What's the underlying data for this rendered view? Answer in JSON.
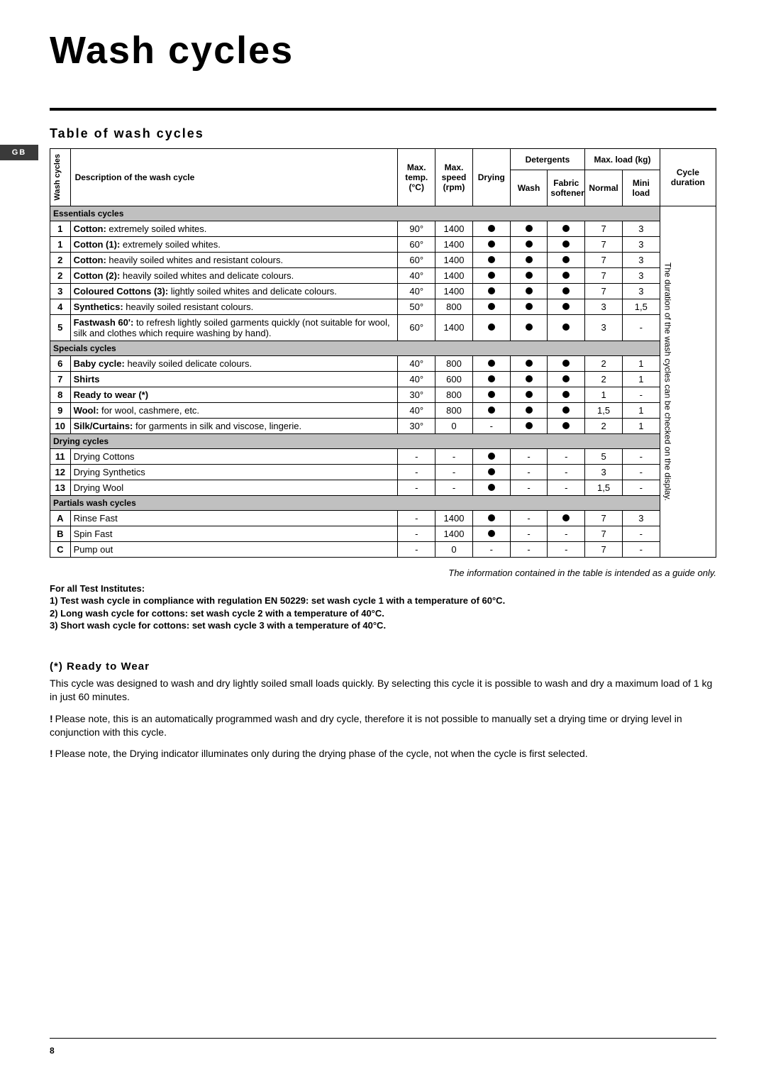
{
  "langTab": "GB",
  "title": "Wash cycles",
  "tableOfCyclesHeading": "Table of wash cycles",
  "table": {
    "head": {
      "washCycles": "Wash cycles",
      "description": "Description of the wash cycle",
      "maxTemp": "Max. temp. (°C)",
      "maxSpeed": "Max. speed (rpm)",
      "drying": "Drying",
      "detergents": "Detergents",
      "wash": "Wash",
      "fabricSoftener": "Fabric softener",
      "maxLoad": "Max. load (kg)",
      "normal": "Normal",
      "miniLoad": "Mini load",
      "cycleDuration": "Cycle duration",
      "durationNote": "The duration of the wash cycles can be checked on the display."
    },
    "sections": [
      {
        "label": "Essentials cycles",
        "rows": [
          {
            "n": "1",
            "desc": "<b>Cotton:</b> extremely soiled whites.",
            "temp": "90°",
            "rpm": "1400",
            "dry": true,
            "wash": true,
            "soft": true,
            "norm": "7",
            "mini": "3"
          },
          {
            "n": "1",
            "desc": "<b>Cotton (1):</b> extremely soiled whites.",
            "temp": "60°",
            "rpm": "1400",
            "dry": true,
            "wash": true,
            "soft": true,
            "norm": "7",
            "mini": "3"
          },
          {
            "n": "2",
            "desc": "<b>Cotton:</b> heavily soiled whites and resistant colours.",
            "temp": "60°",
            "rpm": "1400",
            "dry": true,
            "wash": true,
            "soft": true,
            "norm": "7",
            "mini": "3"
          },
          {
            "n": "2",
            "desc": "<b>Cotton (2):</b> heavily soiled whites and delicate colours.",
            "temp": "40°",
            "rpm": "1400",
            "dry": true,
            "wash": true,
            "soft": true,
            "norm": "7",
            "mini": "3"
          },
          {
            "n": "3",
            "desc": "<b>Coloured Cottons (3):</b> lightly soiled whites and delicate colours.",
            "temp": "40°",
            "rpm": "1400",
            "dry": true,
            "wash": true,
            "soft": true,
            "norm": "7",
            "mini": "3"
          },
          {
            "n": "4",
            "desc": "<b>Synthetics:</b> heavily soiled resistant colours.",
            "temp": "50°",
            "rpm": "800",
            "dry": true,
            "wash": true,
            "soft": true,
            "norm": "3",
            "mini": "1,5"
          },
          {
            "n": "5",
            "desc": "<b>Fastwash 60':</b> to refresh lightly soiled garments quickly (not suitable for wool, silk and clothes which require washing by hand).",
            "temp": "60°",
            "rpm": "1400",
            "dry": true,
            "wash": true,
            "soft": true,
            "norm": "3",
            "mini": "-"
          }
        ]
      },
      {
        "label": "Specials cycles",
        "rows": [
          {
            "n": "6",
            "desc": "<b>Baby cycle:</b> heavily soiled delicate colours.",
            "temp": "40°",
            "rpm": "800",
            "dry": true,
            "wash": true,
            "soft": true,
            "norm": "2",
            "mini": "1"
          },
          {
            "n": "7",
            "desc": "<b>Shirts</b>",
            "temp": "40°",
            "rpm": "600",
            "dry": true,
            "wash": true,
            "soft": true,
            "norm": "2",
            "mini": "1"
          },
          {
            "n": "8",
            "desc": "<b>Ready to wear (*)</b>",
            "temp": "30°",
            "rpm": "800",
            "dry": true,
            "wash": true,
            "soft": true,
            "norm": "1",
            "mini": "-"
          },
          {
            "n": "9",
            "desc": "<b>Wool:</b> for wool, cashmere, etc.",
            "temp": "40°",
            "rpm": "800",
            "dry": true,
            "wash": true,
            "soft": true,
            "norm": "1,5",
            "mini": "1"
          },
          {
            "n": "10",
            "desc": "<b>Silk/Curtains:</b> for garments in silk and viscose, lingerie.",
            "temp": "30°",
            "rpm": "0",
            "dry": "-",
            "wash": true,
            "soft": true,
            "norm": "2",
            "mini": "1"
          }
        ]
      },
      {
        "label": "Drying cycles",
        "rows": [
          {
            "n": "11",
            "desc": "Drying Cottons",
            "temp": "-",
            "rpm": "-",
            "dry": true,
            "wash": "-",
            "soft": "-",
            "norm": "5",
            "mini": "-"
          },
          {
            "n": "12",
            "desc": "Drying Synthetics",
            "temp": "-",
            "rpm": "-",
            "dry": true,
            "wash": "-",
            "soft": "-",
            "norm": "3",
            "mini": "-"
          },
          {
            "n": "13",
            "desc": "Drying Wool",
            "temp": "-",
            "rpm": "-",
            "dry": true,
            "wash": "-",
            "soft": "-",
            "norm": "1,5",
            "mini": "-"
          }
        ]
      },
      {
        "label": "Partials wash cycles",
        "rows": [
          {
            "n": "A",
            "desc": "Rinse Fast",
            "temp": "-",
            "rpm": "1400",
            "dry": true,
            "wash": "-",
            "soft": true,
            "norm": "7",
            "mini": "3"
          },
          {
            "n": "B",
            "desc": "Spin Fast",
            "temp": "-",
            "rpm": "1400",
            "dry": true,
            "wash": "-",
            "soft": "-",
            "norm": "7",
            "mini": "-"
          },
          {
            "n": "C",
            "desc": "Pump out",
            "temp": "-",
            "rpm": "0",
            "dry": "-",
            "wash": "-",
            "soft": "-",
            "norm": "7",
            "mini": "-"
          }
        ]
      }
    ]
  },
  "tableNote": "The information contained in the table is intended as a guide only.",
  "testInstitutes": {
    "title": "For all Test Institutes:",
    "line1": "1) Test wash cycle in compliance with regulation EN 50229: set wash cycle 1 with a temperature of 60°C.",
    "line2": "2) Long wash cycle for cottons: set wash cycle 2 with a temperature of 40°C.",
    "line3": "3) Short wash cycle for cottons: set wash cycle 3 with a temperature of 40°C."
  },
  "readyToWear": {
    "heading": "(*) Ready to Wear",
    "p1": "This cycle was designed to wash and dry lightly soiled small loads quickly. By selecting this cycle it is possible to wash and dry a maximum load of 1 kg in just 60 minutes.",
    "p2": "Please note, this is an automatically programmed wash and dry cycle, therefore it is not possible to manually set a drying time or drying level in conjunction with this cycle.",
    "p3": "Please note, the Drying indicator illuminates only during the drying phase of the cycle, not when the cycle is first selected."
  },
  "pageNumber": "8"
}
